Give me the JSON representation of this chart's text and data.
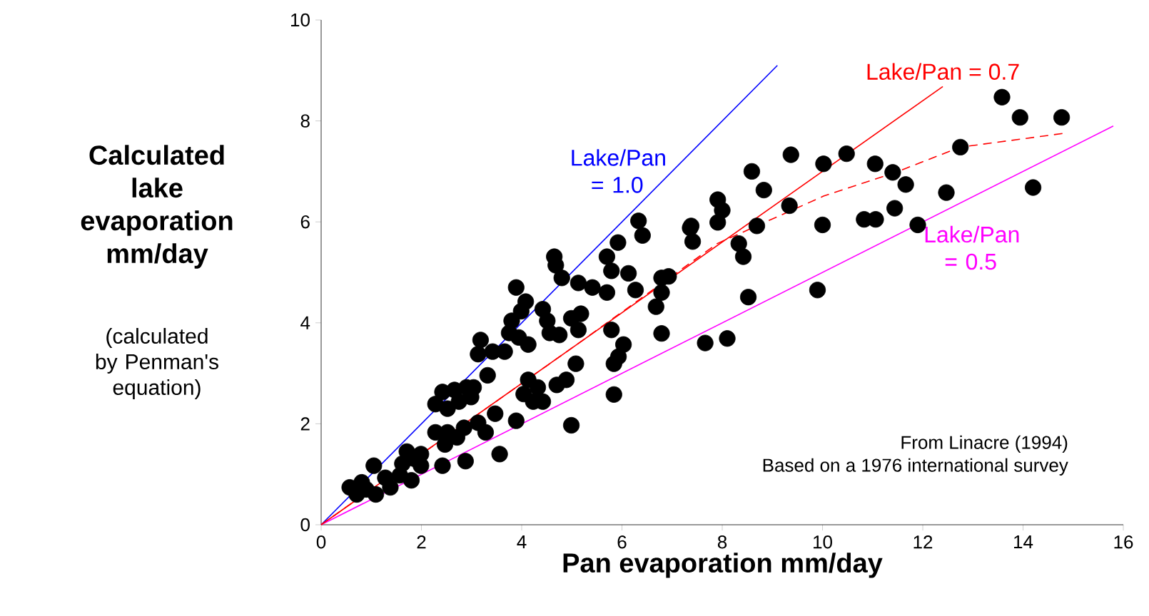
{
  "chart_data": {
    "type": "scatter",
    "xlabel": "Pan evaporation mm/day",
    "ylabel": "Calculated lake evaporation mm/day",
    "annotations": [
      "(calculated by Penman's equation)",
      "From Linacre (1994)",
      "Based on a 1976 international survey"
    ],
    "xlim": [
      0,
      16
    ],
    "ylim": [
      0,
      10
    ],
    "xticks": [
      0,
      2,
      4,
      6,
      8,
      10,
      12,
      14,
      16
    ],
    "yticks": [
      0,
      2,
      4,
      6,
      8,
      10
    ],
    "grid": false,
    "legend": false,
    "marker": "circle",
    "series": [
      {
        "color": "#000000",
        "x": [
          13.58,
          13.94,
          14.77,
          12.75,
          14.2,
          12.47,
          11.9,
          11.66,
          11.4,
          11.44,
          11.05,
          11.06,
          10.83,
          10.48,
          10.02,
          10.0,
          9.9,
          9.37,
          9.34,
          8.83,
          8.59,
          8.69,
          7.91,
          8.0,
          7.91,
          7.38,
          7.41,
          8.33,
          8.42,
          8.52,
          7.66,
          8.1,
          6.33,
          6.41,
          5.92,
          4.65,
          4.68,
          4.8,
          5.7,
          5.79,
          6.13,
          5.13,
          5.41,
          5.7,
          6.27,
          6.79,
          6.93,
          6.79,
          6.68,
          6.79,
          7.36,
          3.89,
          4.08,
          3.99,
          3.8,
          3.75,
          3.94,
          4.42,
          4.51,
          4.56,
          4.75,
          4.99,
          5.18,
          5.13,
          5.79,
          3.18,
          3.13,
          3.42,
          3.66,
          4.13,
          3.32,
          5.08,
          6.03,
          5.93,
          5.84,
          4.13,
          4.32,
          4.7,
          4.89,
          4.04,
          4.23,
          4.42,
          3.04,
          3.47,
          3.89,
          5.84,
          4.99,
          3.13,
          3.28,
          3.56,
          2.28,
          2.42,
          2.66,
          2.9,
          2.52,
          2.75,
          2.99,
          2.28,
          2.52,
          2.71,
          2.47,
          2.85,
          2.88,
          2.42,
          1.71,
          1.85,
          1.99,
          1.62,
          1.8,
          1.57,
          1.99,
          1.28,
          1.05,
          1.38,
          1.09,
          0.81,
          0.9,
          0.57,
          0.71
        ],
        "values": [
          8.47,
          8.07,
          8.07,
          7.48,
          6.68,
          6.58,
          5.94,
          6.74,
          6.98,
          6.27,
          7.15,
          6.05,
          6.05,
          7.35,
          7.15,
          5.94,
          4.65,
          7.33,
          6.32,
          6.63,
          7.0,
          5.92,
          6.44,
          6.23,
          5.99,
          5.92,
          5.61,
          5.57,
          5.31,
          4.51,
          3.6,
          3.69,
          6.02,
          5.73,
          5.59,
          5.31,
          5.14,
          4.89,
          5.31,
          5.03,
          4.98,
          4.79,
          4.7,
          4.6,
          4.65,
          4.89,
          4.92,
          4.6,
          4.32,
          3.79,
          5.88,
          4.7,
          4.42,
          4.23,
          4.04,
          3.8,
          3.71,
          4.27,
          4.04,
          3.8,
          3.76,
          4.09,
          4.18,
          3.86,
          3.86,
          3.66,
          3.38,
          3.43,
          3.43,
          3.57,
          2.96,
          3.19,
          3.57,
          3.33,
          3.19,
          2.87,
          2.72,
          2.77,
          2.87,
          2.59,
          2.44,
          2.44,
          2.72,
          2.2,
          2.06,
          2.58,
          1.97,
          2.02,
          1.83,
          1.4,
          2.39,
          2.63,
          2.67,
          2.72,
          2.3,
          2.44,
          2.53,
          1.83,
          1.83,
          1.73,
          1.59,
          1.92,
          1.26,
          1.17,
          1.45,
          1.31,
          1.4,
          1.21,
          0.88,
          0.98,
          1.17,
          0.93,
          1.17,
          0.74,
          0.6,
          0.84,
          0.7,
          0.74,
          0.6
        ]
      },
      {
        "type": "line",
        "name": "Lake/Pan = 1.0",
        "color": "#0000ff",
        "marker": "none",
        "line_style": "solid",
        "x": [
          0,
          9.1
        ],
        "values": [
          0,
          9.1
        ]
      },
      {
        "type": "line",
        "name": "Lake/Pan = 0.7",
        "color": "#ff0000",
        "marker": "none",
        "line_style": "solid",
        "x": [
          0,
          12.4
        ],
        "values": [
          0,
          8.68
        ]
      },
      {
        "type": "line",
        "name": "Lake/Pan = 0.5",
        "color": "#ff00ff",
        "marker": "none",
        "line_style": "solid",
        "x": [
          0,
          15.8
        ],
        "values": [
          0,
          7.9
        ]
      },
      {
        "type": "line",
        "color": "#ff0000",
        "marker": "none",
        "line_style": "dashed",
        "x": [
          0,
          5,
          7.9,
          10.02,
          11.4,
          12.75,
          14.86
        ],
        "values": [
          0,
          3.5,
          5.57,
          6.51,
          6.96,
          7.48,
          7.76
        ]
      }
    ]
  }
}
